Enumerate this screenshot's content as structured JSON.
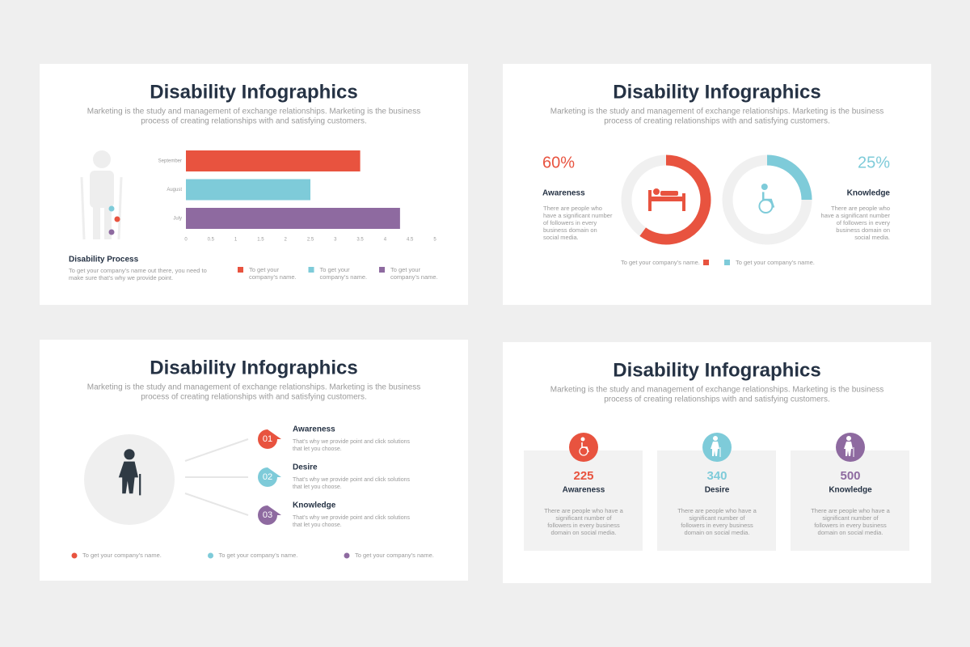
{
  "slides": [
    {
      "title": "Disability Infographics",
      "subtitle": [
        "Marketing is the study and management of exchange relationships. Marketing is the business",
        "process of creating relationships with and satisfying customers."
      ],
      "chart_data": {
        "type": "bar",
        "categories": [
          "September",
          "August",
          "July"
        ],
        "values": [
          3.5,
          2.5,
          4.3
        ],
        "colors": [
          "#e8533f",
          "#7ecbd9",
          "#8e6aa0"
        ],
        "xlim": [
          0,
          5
        ],
        "xticks": [
          0,
          0.5,
          1,
          1.5,
          2,
          2.5,
          3,
          3.5,
          4,
          4.5,
          5
        ]
      },
      "heading": "Disability Process",
      "text": [
        "To get your company’s name out there, you need to",
        "make sure that’s why we provide point."
      ],
      "legend": [
        [
          "To get your",
          "company’s name."
        ],
        [
          "To get your",
          "company’s name."
        ],
        [
          "To get your",
          "company’s name."
        ]
      ]
    },
    {
      "title": "Disability Infographics",
      "subtitle": [
        "Marketing is the study and management of exchange relationships. Marketing is the business",
        "process of creating relationships with and satisfying customers."
      ],
      "chart_data": {
        "type": "donut",
        "categories": [
          "Awareness",
          "Knowledge"
        ],
        "values": [
          60,
          25
        ],
        "value_labels": [
          "60%",
          "25%"
        ],
        "colors": [
          "#e8533f",
          "#7ecbd9"
        ],
        "descriptions": [
          [
            "There are people who",
            "have a significant number",
            "of followers in every",
            "business domain on",
            "social media."
          ],
          [
            "There are people who",
            "have a significant number",
            "of followers in every",
            "business domain on",
            "social media."
          ]
        ],
        "legend": [
          "To get your company’s name.",
          "To get your company’s name."
        ]
      }
    },
    {
      "title": "Disability Infographics",
      "subtitle": [
        "Marketing is the study and management of exchange relationships. Marketing is the business",
        "process of creating relationships with and satisfying customers."
      ],
      "steps": [
        {
          "number": "01",
          "title": "Awareness",
          "text": [
            "That’s why we provide point and click solutions",
            "that let you choose."
          ]
        },
        {
          "number": "02",
          "title": "Desire",
          "text": [
            "That’s why we provide point and click solutions",
            "that let you choose."
          ]
        },
        {
          "number": "03",
          "title": "Knowledge",
          "text": [
            "That’s why we provide point and click solutions",
            "that let you choose."
          ]
        }
      ],
      "legend": [
        "To get your company’s name.",
        "To get your company’s name.",
        "To get your company’s name."
      ]
    },
    {
      "title": "Disability Infographics",
      "subtitle": [
        "Marketing is the study and management of exchange relationships. Marketing is the business",
        "process of creating relationships with and satisfying customers."
      ],
      "cards": [
        {
          "value": 225,
          "name": "Awareness",
          "text": [
            "There are people who have a",
            "significant number of",
            "followers in every business",
            "domain on social media."
          ]
        },
        {
          "value": 340,
          "name": "Desire",
          "text": [
            "There are people who have a",
            "significant number of",
            "followers in every business",
            "domain on social media."
          ]
        },
        {
          "value": 500,
          "name": "Knowledge",
          "text": [
            "There are people who have a",
            "significant number of",
            "followers in every business",
            "domain on social media."
          ]
        }
      ]
    }
  ]
}
